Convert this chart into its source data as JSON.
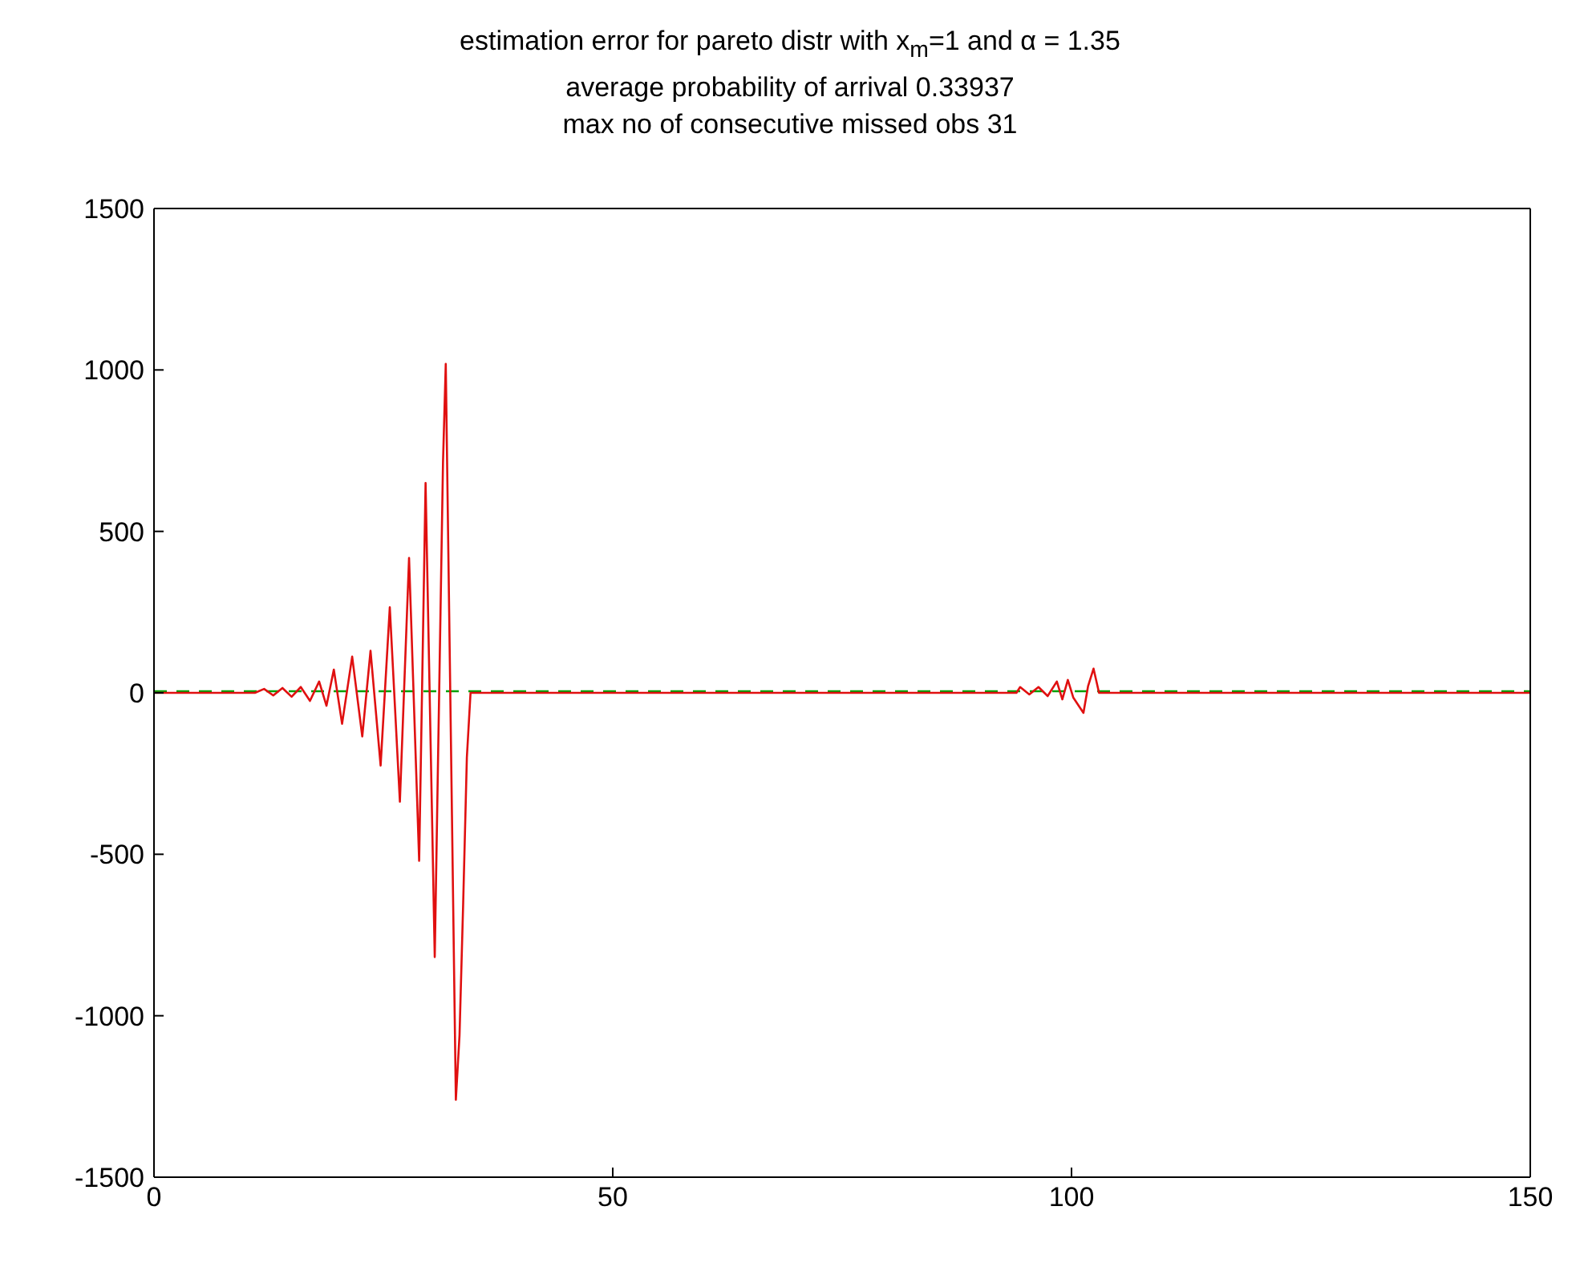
{
  "chart_data": {
    "type": "line",
    "title": "estimation error for pareto distr with x$_{m}$=1 and α = 1.35",
    "subtitle": "average probability of arrival 0.33937\nmax no of consecutive missed obs 31",
    "xlim": [
      0,
      150
    ],
    "xticks": [
      0,
      50,
      100,
      150
    ],
    "ylim": [
      -1500,
      1500
    ],
    "yticks": [
      -1500,
      -1000,
      -500,
      0,
      500,
      1000,
      1500
    ],
    "marker": "none",
    "series": [
      {
        "color": "#00a000",
        "line_style": "dashed",
        "x": [
          0,
          150
        ],
        "values": [
          5,
          5
        ]
      },
      {
        "color": "#e01010",
        "line_style": "solid",
        "x": [
          0,
          11,
          12,
          13,
          14,
          15,
          16,
          17,
          18,
          18.8,
          19.6,
          20.5,
          21.6,
          22.7,
          23.6,
          24.7,
          25.7,
          26.8,
          27.8,
          28.9,
          29.6,
          30.6,
          31.5,
          31.8,
          32.9,
          33.3,
          33.7,
          34.1,
          34.5,
          94,
          94.4,
          95.4,
          96.4,
          97.4,
          98.4,
          99,
          99.6,
          100.2,
          101.3,
          101.8,
          102.4,
          103,
          150
        ],
        "values": [
          0,
          0,
          12,
          -8,
          15,
          -12,
          18,
          -25,
          35,
          -40,
          72,
          -96,
          112,
          -135,
          130,
          -225,
          265,
          -337,
          418,
          -520,
          650,
          -818,
          714,
          1019,
          -1260,
          -1060,
          -650,
          -200,
          0,
          0,
          18,
          -5,
          18,
          -10,
          35,
          -20,
          40,
          -15,
          -62,
          20,
          75,
          0,
          0
        ]
      }
    ]
  }
}
